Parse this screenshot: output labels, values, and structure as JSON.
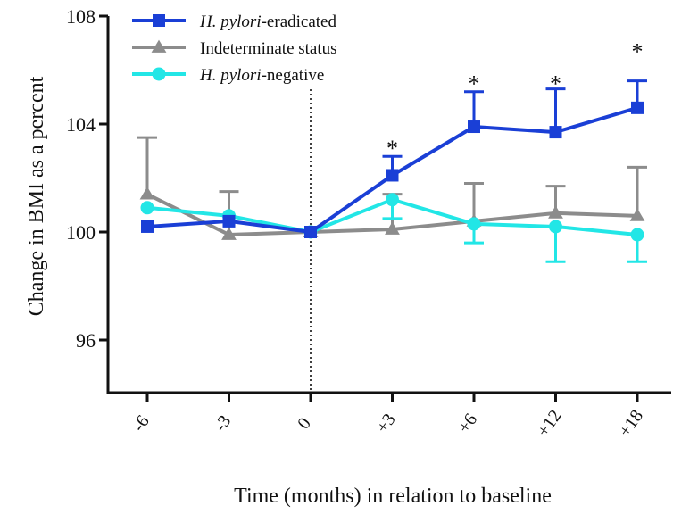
{
  "chart_data": {
    "type": "line",
    "title": "",
    "xlabel": "Time (months) in relation to baseline",
    "ylabel": "Change in BMI as a percent",
    "categories": [
      "-6",
      "-3",
      "0",
      "+3",
      "+6",
      "+12",
      "+18"
    ],
    "ylim": [
      92,
      108
    ],
    "yticks": [
      96,
      100,
      104,
      108
    ],
    "grid": false,
    "legend_position": "top-left",
    "baseline_marker_category": "0",
    "series": [
      {
        "name_parts": [
          {
            "text": "H. pylori",
            "italic": true
          },
          {
            "text": "-eradicated",
            "italic": false
          }
        ],
        "color": "#1a3fd6",
        "marker": "square",
        "values": [
          100.2,
          100.4,
          100.0,
          102.1,
          103.9,
          103.7,
          104.6
        ],
        "error_upper": [
          null,
          null,
          null,
          102.8,
          105.2,
          105.3,
          105.6
        ],
        "error_lower": [
          null,
          null,
          null,
          null,
          null,
          null,
          null
        ]
      },
      {
        "name_parts": [
          {
            "text": "Indeterminate status",
            "italic": false
          }
        ],
        "color": "#8c8c8c",
        "marker": "triangle",
        "values": [
          101.4,
          99.9,
          100.0,
          100.1,
          100.4,
          100.7,
          100.6
        ],
        "error_upper": [
          103.5,
          101.5,
          null,
          101.4,
          101.8,
          101.7,
          102.4
        ],
        "error_lower": [
          null,
          null,
          null,
          null,
          null,
          null,
          null
        ]
      },
      {
        "name_parts": [
          {
            "text": "H. pylori",
            "italic": true
          },
          {
            "text": "-negative",
            "italic": false
          }
        ],
        "color": "#22e6e6",
        "marker": "circle",
        "values": [
          100.9,
          100.6,
          100.0,
          101.2,
          100.3,
          100.2,
          99.9
        ],
        "error_upper": [
          null,
          null,
          null,
          null,
          null,
          null,
          null
        ],
        "error_lower": [
          null,
          null,
          null,
          100.5,
          99.6,
          98.9,
          98.9
        ]
      }
    ],
    "annotations": [
      {
        "text": "*",
        "category": "+3",
        "y": 103.4
      },
      {
        "text": "*",
        "category": "+6",
        "y": 105.8
      },
      {
        "text": "*",
        "category": "+12",
        "y": 105.8
      },
      {
        "text": "*",
        "category": "+18",
        "y": 107.0
      }
    ]
  }
}
